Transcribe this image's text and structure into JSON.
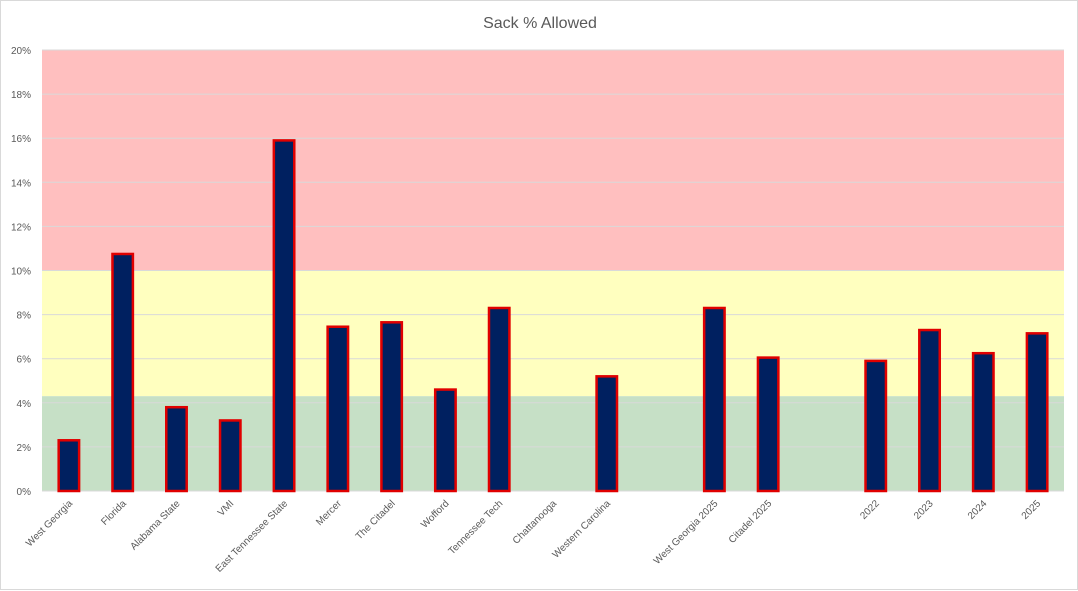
{
  "chart_data": {
    "type": "bar",
    "title": "Sack % Allowed",
    "xlabel": "",
    "ylabel": "",
    "ylim": [
      0,
      20
    ],
    "ytick_step": 2,
    "ytick_format": "percent",
    "grid": true,
    "legend": "none",
    "categories": [
      "West Georgia",
      "Florida",
      "Alabama State",
      "VMI",
      "East Tennessee State",
      "Mercer",
      "The Citadel",
      "Wofford",
      "Tennessee Tech",
      "Chattanooga",
      "Western Carolina",
      "",
      "West Georgia 2025",
      "Citadel 2025",
      "",
      "2022",
      "2023",
      "2024",
      "2025"
    ],
    "series": [
      {
        "name": "Sack % Allowed",
        "values": [
          2.3,
          10.75,
          3.8,
          3.2,
          15.9,
          7.45,
          7.65,
          4.6,
          8.3,
          null,
          5.2,
          null,
          8.3,
          6.05,
          null,
          5.9,
          7.3,
          6.25,
          7.15
        ]
      }
    ],
    "bands": [
      {
        "from": 10,
        "to": 20,
        "color": "#ffbfbf"
      },
      {
        "from": 4.3,
        "to": 10,
        "color": "#ffffbf"
      },
      {
        "from": 0,
        "to": 4.3,
        "color": "#c6e0c6"
      }
    ],
    "colors": {
      "bar_fill": "#002060",
      "bar_stroke": "#e00000",
      "grid": "#d9d9d9"
    }
  }
}
